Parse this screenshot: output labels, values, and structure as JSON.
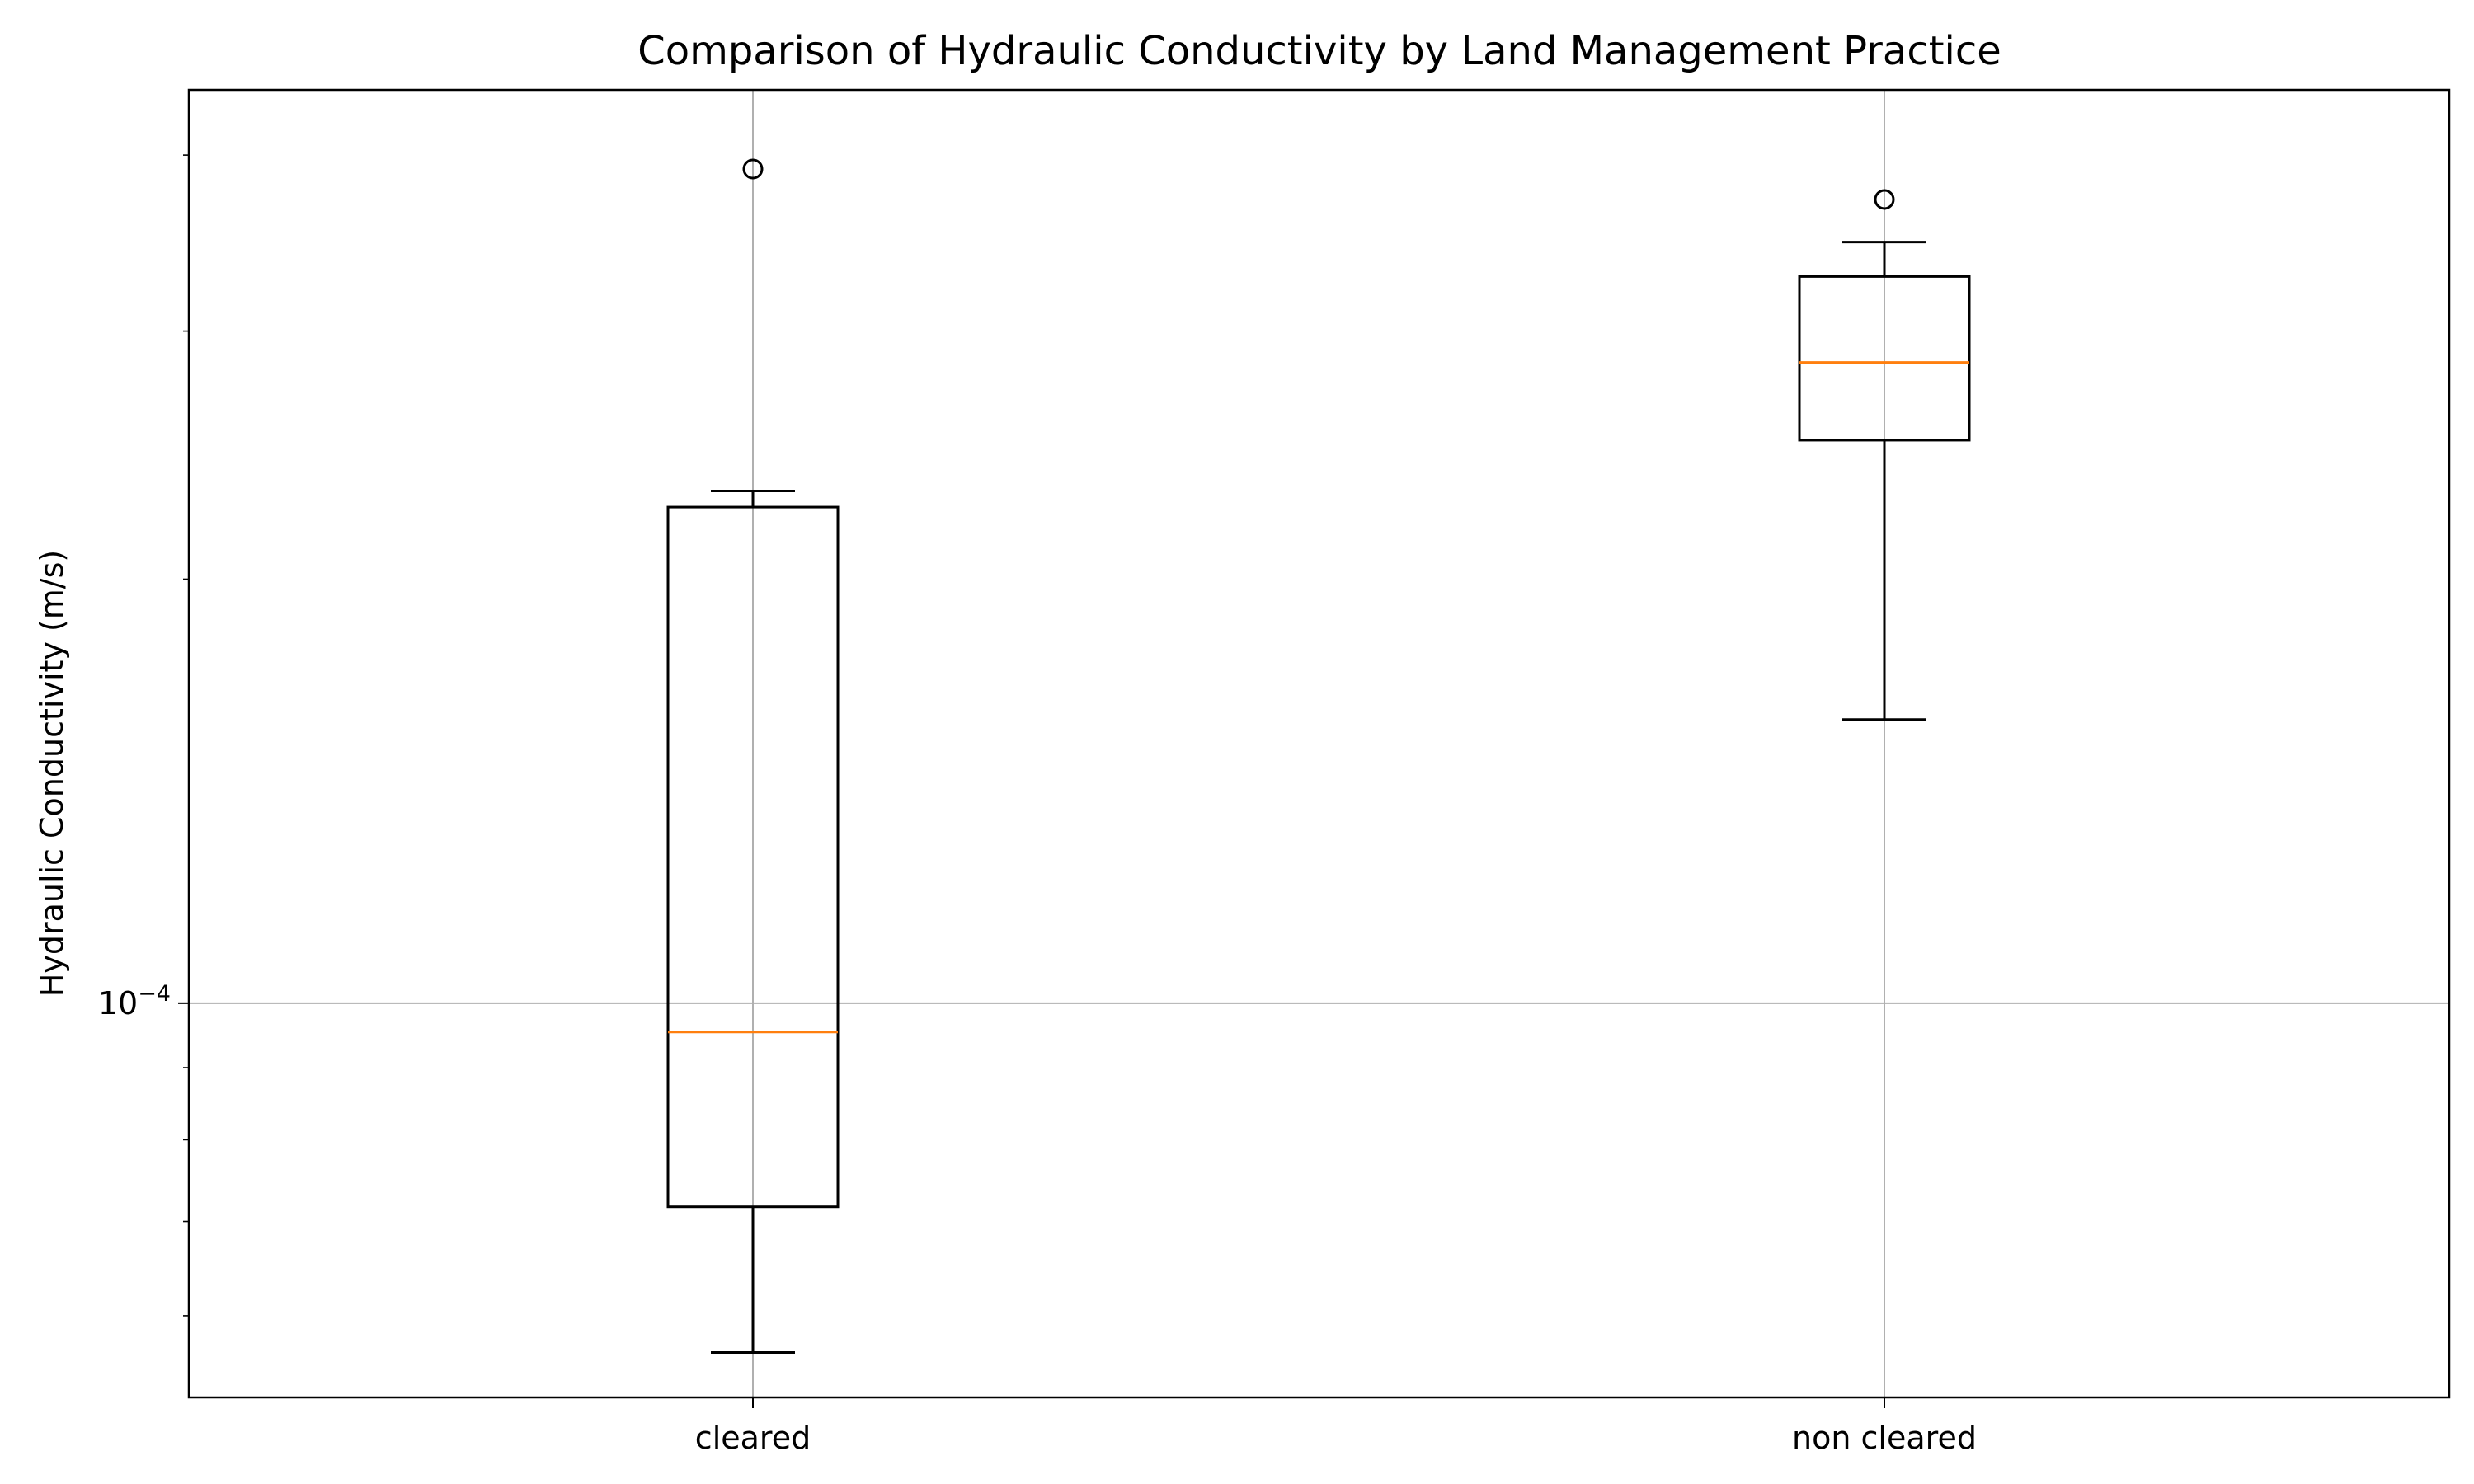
{
  "chart_data": {
    "type": "box",
    "title": "Comparison of Hydraulic Conductivity by Land Management Practice",
    "xlabel": "",
    "ylabel": "Hydraulic Conductivity (m/s)",
    "yscale": "log",
    "ylim": [
      5.25e-05,
      0.000445
    ],
    "major_ticks": [
      {
        "value": 0.0001,
        "label_base": "10",
        "label_exp": "−4"
      }
    ],
    "minor_ticks": [
      6e-05,
      7e-05,
      8e-05,
      9e-05,
      0.0002,
      0.0003,
      0.0004
    ],
    "grid": true,
    "categories": [
      "cleared",
      "non cleared"
    ],
    "boxes": [
      {
        "label": "cleared",
        "whisker_low": 5.65e-05,
        "q1": 7.17e-05,
        "median": 9.54e-05,
        "q3": 0.000225,
        "whisker_high": 0.000231,
        "outliers": [
          0.000391
        ]
      },
      {
        "label": "non cleared",
        "whisker_low": 0.000159,
        "q1": 0.000251,
        "median": 0.000285,
        "q3": 0.000328,
        "whisker_high": 0.000347,
        "outliers": [
          0.000372
        ]
      }
    ],
    "colors": {
      "box": "#000000",
      "median": "#ff7f0e",
      "grid": "#b0b0b0",
      "whisker": "#000000",
      "outlier": "#000000"
    }
  }
}
